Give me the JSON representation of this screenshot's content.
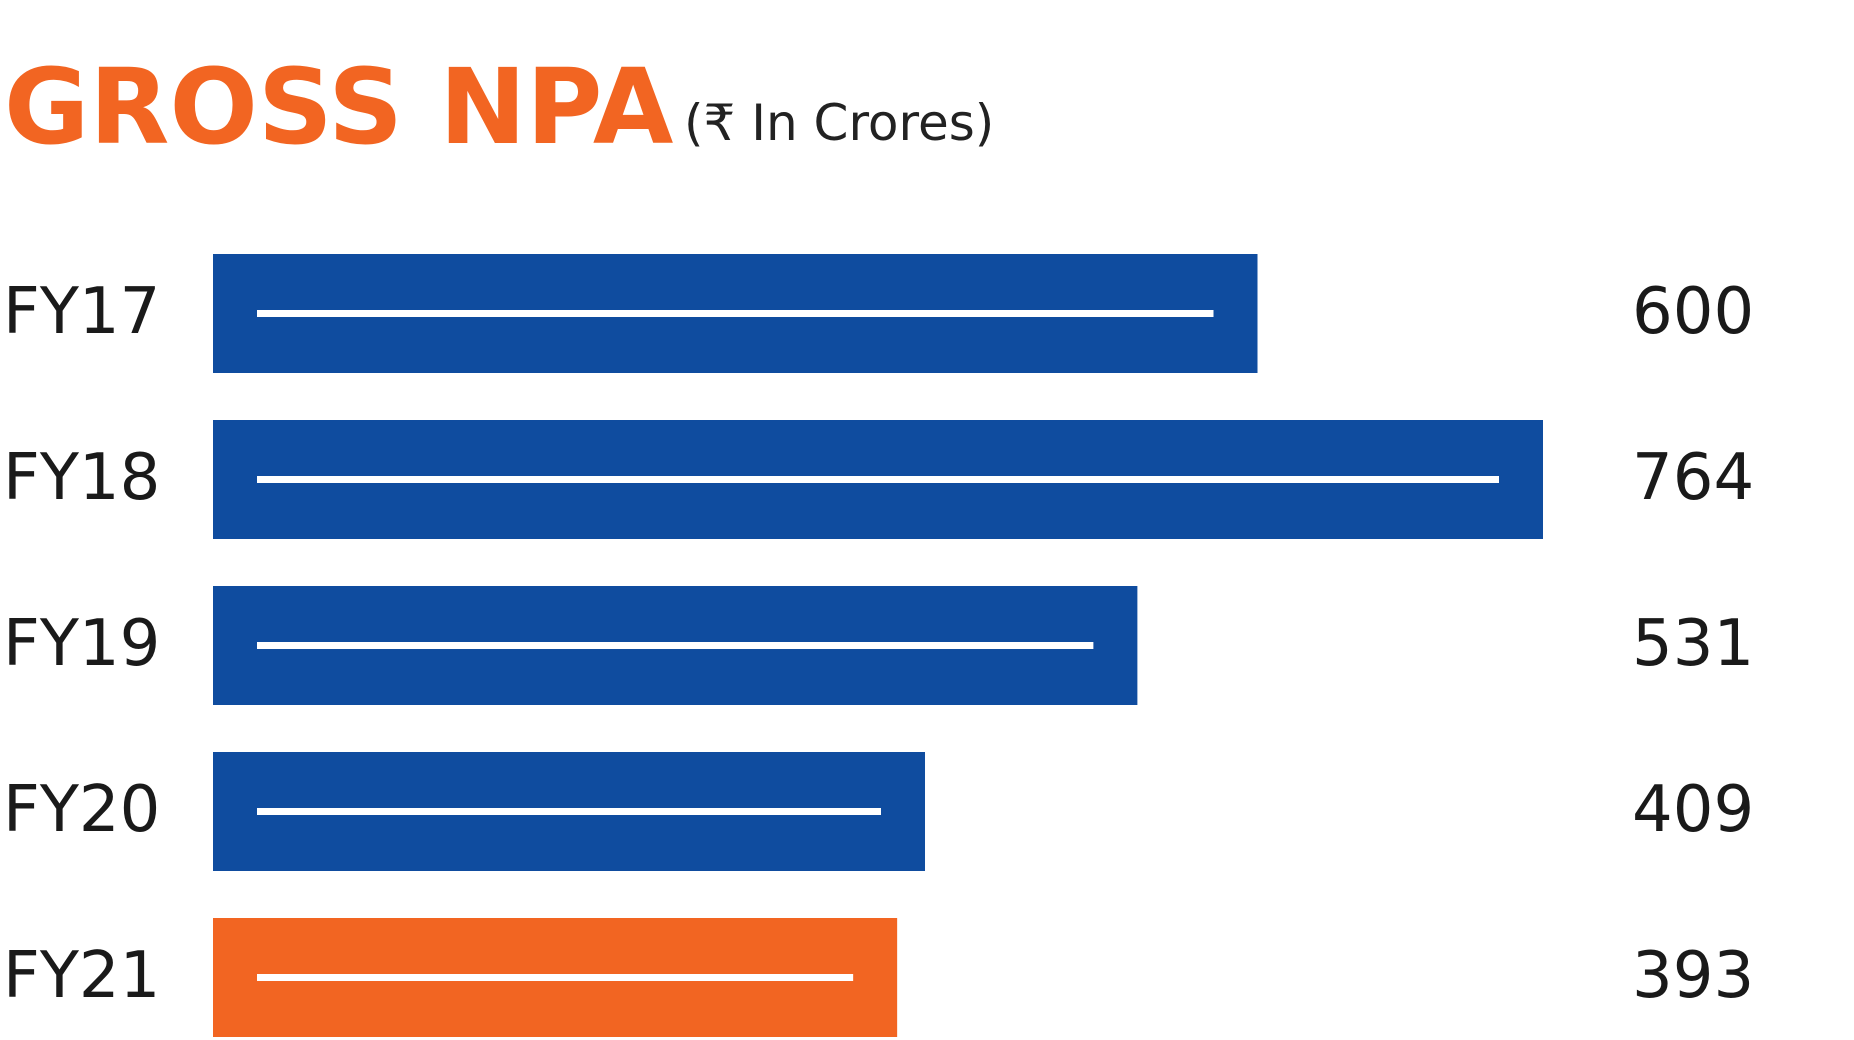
{
  "chart_data": {
    "type": "bar",
    "orientation": "horizontal",
    "title": "GROSS NPA",
    "subtitle": "(₹ In Crores)",
    "categories": [
      "FY17",
      "FY18",
      "FY19",
      "FY20",
      "FY21"
    ],
    "values": [
      600,
      764,
      531,
      409,
      393
    ],
    "colors": [
      "#0f4c9f",
      "#0f4c9f",
      "#0f4c9f",
      "#0f4c9f",
      "#f26522"
    ]
  }
}
